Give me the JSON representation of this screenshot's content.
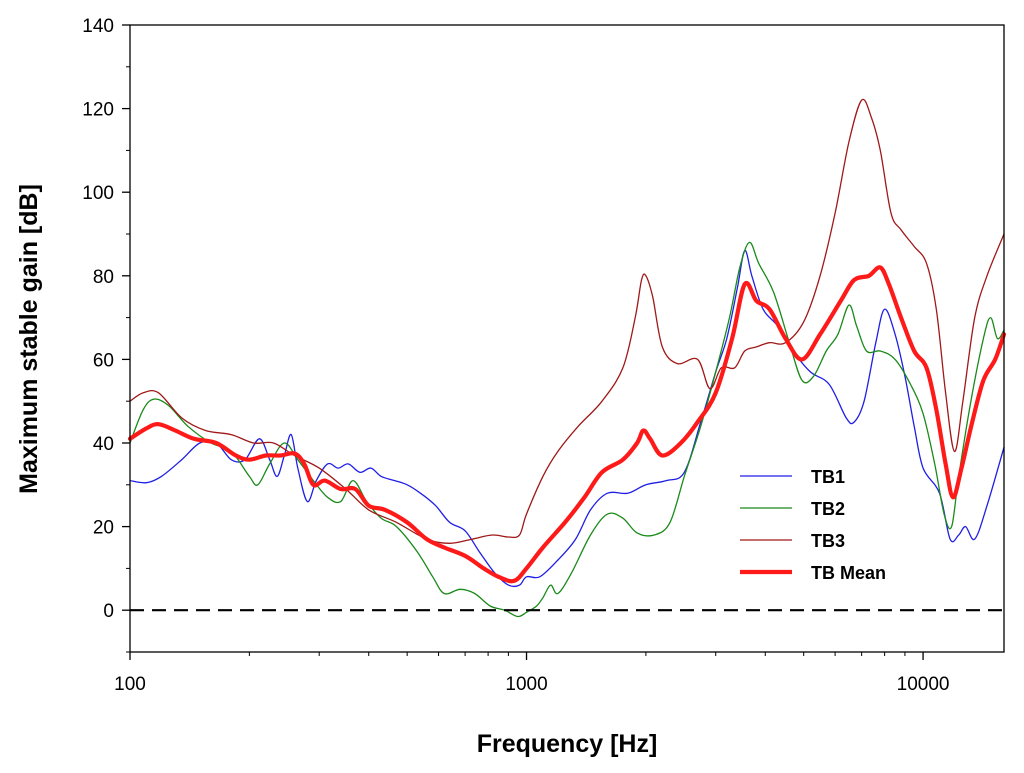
{
  "chart_data": {
    "type": "line",
    "title": "",
    "xlabel": "Frequency [Hz]",
    "ylabel": "Maximum stable gain [dB]",
    "xscale": "log",
    "xlim": [
      100,
      16000
    ],
    "ylim": [
      -10,
      140
    ],
    "grid": false,
    "legend_position": "lower-right",
    "x_ticks": [
      {
        "value": 100,
        "label": "100"
      },
      {
        "value": 1000,
        "label": "1000"
      },
      {
        "value": 10000,
        "label": "10000"
      }
    ],
    "y_ticks": [
      {
        "value": 0,
        "label": "0"
      },
      {
        "value": 20,
        "label": "20"
      },
      {
        "value": 40,
        "label": "40"
      },
      {
        "value": 60,
        "label": "60"
      },
      {
        "value": 80,
        "label": "80"
      },
      {
        "value": 100,
        "label": "100"
      },
      {
        "value": 120,
        "label": "120"
      },
      {
        "value": 140,
        "label": "140"
      }
    ],
    "reference_line": {
      "y": 0,
      "style": "dashed",
      "color": "#000000"
    },
    "series": [
      {
        "name": "TB1",
        "color": "#1f1fe6",
        "width": 1.3,
        "points": [
          [
            100,
            31
          ],
          [
            110,
            30.5
          ],
          [
            120,
            32
          ],
          [
            135,
            36
          ],
          [
            150,
            40
          ],
          [
            165,
            40
          ],
          [
            180,
            36
          ],
          [
            195,
            36
          ],
          [
            212,
            41
          ],
          [
            225,
            36
          ],
          [
            235,
            32
          ],
          [
            245,
            37
          ],
          [
            255,
            42
          ],
          [
            265,
            34
          ],
          [
            280,
            26
          ],
          [
            295,
            31
          ],
          [
            315,
            35
          ],
          [
            335,
            34
          ],
          [
            355,
            35
          ],
          [
            380,
            33
          ],
          [
            405,
            34
          ],
          [
            430,
            32
          ],
          [
            465,
            31
          ],
          [
            500,
            30
          ],
          [
            540,
            28
          ],
          [
            590,
            25
          ],
          [
            640,
            21
          ],
          [
            700,
            19
          ],
          [
            760,
            14
          ],
          [
            830,
            9
          ],
          [
            900,
            6
          ],
          [
            960,
            6
          ],
          [
            1000,
            8
          ],
          [
            1080,
            8
          ],
          [
            1200,
            12
          ],
          [
            1330,
            17
          ],
          [
            1450,
            24
          ],
          [
            1600,
            28
          ],
          [
            1800,
            28
          ],
          [
            2000,
            30
          ],
          [
            2250,
            31
          ],
          [
            2500,
            33
          ],
          [
            2750,
            45
          ],
          [
            3000,
            57
          ],
          [
            3200,
            65
          ],
          [
            3400,
            77
          ],
          [
            3550,
            86
          ],
          [
            3700,
            80
          ],
          [
            3950,
            72
          ],
          [
            4300,
            68
          ],
          [
            4700,
            62
          ],
          [
            5200,
            57
          ],
          [
            5800,
            54
          ],
          [
            6400,
            46
          ],
          [
            6700,
            45
          ],
          [
            7100,
            50
          ],
          [
            7600,
            64
          ],
          [
            8000,
            72
          ],
          [
            8500,
            66
          ],
          [
            9000,
            56
          ],
          [
            9500,
            44
          ],
          [
            10000,
            34
          ],
          [
            11000,
            28
          ],
          [
            11700,
            17
          ],
          [
            12300,
            18
          ],
          [
            12800,
            20
          ],
          [
            13500,
            17
          ],
          [
            14500,
            25
          ],
          [
            16000,
            39
          ]
        ]
      },
      {
        "name": "TB2",
        "color": "#1a8a1a",
        "width": 1.3,
        "points": [
          [
            100,
            40
          ],
          [
            108,
            48
          ],
          [
            115,
            50.5
          ],
          [
            125,
            49
          ],
          [
            140,
            44
          ],
          [
            160,
            40
          ],
          [
            180,
            38
          ],
          [
            200,
            32
          ],
          [
            210,
            30
          ],
          [
            225,
            35
          ],
          [
            245,
            40
          ],
          [
            265,
            36
          ],
          [
            290,
            31
          ],
          [
            315,
            27
          ],
          [
            340,
            26
          ],
          [
            365,
            31
          ],
          [
            395,
            26
          ],
          [
            430,
            22
          ],
          [
            470,
            20
          ],
          [
            530,
            14
          ],
          [
            580,
            8
          ],
          [
            620,
            4
          ],
          [
            680,
            5
          ],
          [
            740,
            4
          ],
          [
            810,
            1
          ],
          [
            880,
            0
          ],
          [
            950,
            -1.5
          ],
          [
            1000,
            -0.5
          ],
          [
            1060,
            1
          ],
          [
            1100,
            3
          ],
          [
            1150,
            6
          ],
          [
            1200,
            4
          ],
          [
            1300,
            9
          ],
          [
            1450,
            18
          ],
          [
            1600,
            23
          ],
          [
            1750,
            22
          ],
          [
            1900,
            18.5
          ],
          [
            2100,
            18
          ],
          [
            2300,
            21
          ],
          [
            2500,
            32
          ],
          [
            2750,
            44
          ],
          [
            3000,
            57
          ],
          [
            3250,
            70
          ],
          [
            3450,
            82
          ],
          [
            3650,
            88
          ],
          [
            3850,
            83
          ],
          [
            4200,
            76
          ],
          [
            4600,
            64
          ],
          [
            4950,
            55
          ],
          [
            5300,
            56
          ],
          [
            5700,
            62
          ],
          [
            6100,
            66
          ],
          [
            6500,
            73
          ],
          [
            6800,
            68
          ],
          [
            7200,
            62
          ],
          [
            7800,
            62
          ],
          [
            8500,
            60
          ],
          [
            9300,
            54
          ],
          [
            10000,
            47
          ],
          [
            10700,
            35
          ],
          [
            11300,
            23
          ],
          [
            11800,
            20
          ],
          [
            12300,
            32
          ],
          [
            13200,
            50
          ],
          [
            14200,
            65
          ],
          [
            14800,
            70
          ],
          [
            15400,
            65
          ],
          [
            16000,
            67
          ]
        ]
      },
      {
        "name": "TB3",
        "color": "#a01818",
        "width": 1.3,
        "points": [
          [
            100,
            50
          ],
          [
            108,
            52
          ],
          [
            118,
            52
          ],
          [
            135,
            46
          ],
          [
            155,
            43
          ],
          [
            180,
            42
          ],
          [
            205,
            40
          ],
          [
            230,
            40
          ],
          [
            260,
            37
          ],
          [
            300,
            34
          ],
          [
            350,
            29
          ],
          [
            400,
            24
          ],
          [
            470,
            21
          ],
          [
            560,
            17
          ],
          [
            640,
            16
          ],
          [
            730,
            17
          ],
          [
            820,
            18
          ],
          [
            900,
            17.5
          ],
          [
            960,
            18
          ],
          [
            1000,
            23
          ],
          [
            1100,
            32
          ],
          [
            1200,
            38
          ],
          [
            1350,
            44
          ],
          [
            1550,
            50
          ],
          [
            1750,
            58
          ],
          [
            1880,
            70
          ],
          [
            1950,
            79
          ],
          [
            2000,
            80
          ],
          [
            2080,
            75
          ],
          [
            2200,
            63
          ],
          [
            2400,
            59
          ],
          [
            2700,
            60
          ],
          [
            2900,
            53
          ],
          [
            3100,
            58
          ],
          [
            3350,
            58
          ],
          [
            3550,
            62
          ],
          [
            3800,
            63
          ],
          [
            4100,
            64
          ],
          [
            4500,
            64
          ],
          [
            5000,
            69
          ],
          [
            5500,
            80
          ],
          [
            6000,
            95
          ],
          [
            6500,
            112
          ],
          [
            7000,
            122
          ],
          [
            7400,
            118
          ],
          [
            7800,
            110
          ],
          [
            8300,
            95
          ],
          [
            8800,
            91
          ],
          [
            9500,
            87
          ],
          [
            10200,
            83
          ],
          [
            10800,
            72
          ],
          [
            11400,
            52
          ],
          [
            12000,
            38
          ],
          [
            12600,
            50
          ],
          [
            13500,
            70
          ],
          [
            14500,
            80
          ],
          [
            16000,
            90
          ]
        ]
      },
      {
        "name": "TB Mean",
        "color": "#ff1a1a",
        "width": 4.2,
        "points": [
          [
            100,
            41
          ],
          [
            110,
            43.5
          ],
          [
            118,
            44.5
          ],
          [
            130,
            43
          ],
          [
            145,
            41
          ],
          [
            165,
            40
          ],
          [
            185,
            37
          ],
          [
            200,
            36
          ],
          [
            220,
            37
          ],
          [
            240,
            37
          ],
          [
            260,
            37.5
          ],
          [
            275,
            35
          ],
          [
            290,
            30
          ],
          [
            310,
            31
          ],
          [
            340,
            29
          ],
          [
            370,
            29
          ],
          [
            400,
            25
          ],
          [
            440,
            24
          ],
          [
            500,
            21
          ],
          [
            560,
            17
          ],
          [
            620,
            15
          ],
          [
            700,
            13
          ],
          [
            780,
            10
          ],
          [
            850,
            8
          ],
          [
            930,
            7
          ],
          [
            1000,
            10
          ],
          [
            1100,
            15
          ],
          [
            1250,
            21
          ],
          [
            1400,
            27
          ],
          [
            1550,
            33
          ],
          [
            1750,
            36
          ],
          [
            1900,
            40
          ],
          [
            1970,
            43
          ],
          [
            2050,
            41
          ],
          [
            2200,
            37
          ],
          [
            2450,
            40
          ],
          [
            2700,
            45
          ],
          [
            3000,
            52
          ],
          [
            3300,
            65
          ],
          [
            3550,
            78
          ],
          [
            3800,
            74
          ],
          [
            4100,
            72
          ],
          [
            4500,
            65
          ],
          [
            4950,
            60
          ],
          [
            5500,
            66
          ],
          [
            6200,
            74
          ],
          [
            6700,
            79
          ],
          [
            7300,
            80
          ],
          [
            7800,
            82
          ],
          [
            8200,
            78
          ],
          [
            8800,
            70
          ],
          [
            9500,
            62
          ],
          [
            10200,
            58
          ],
          [
            10800,
            48
          ],
          [
            11400,
            35
          ],
          [
            11900,
            27
          ],
          [
            12500,
            34
          ],
          [
            13300,
            45
          ],
          [
            14200,
            55
          ],
          [
            15200,
            60
          ],
          [
            16000,
            66
          ]
        ]
      }
    ]
  }
}
